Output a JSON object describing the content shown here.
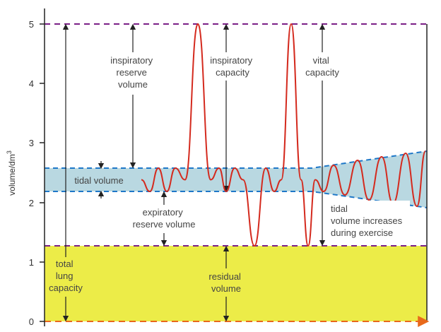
{
  "colors": {
    "residual_fill": "#ecec48",
    "tidal_band_fill": "#b9d8e1",
    "boundary_dash": "#7a1f86",
    "band_edge_dash": "#1f78c8",
    "trace": "#d42a1e",
    "baseline_arrow": "#e8691b",
    "axis": "#222222"
  },
  "axis": {
    "y_label": "volume/dm",
    "y_label_superscript": "3",
    "ticks": [
      "0",
      "1",
      "2",
      "3",
      "4",
      "5"
    ]
  },
  "labels": {
    "inspiratory_reserve": [
      "inspiratory",
      "reserve",
      "volume"
    ],
    "inspiratory_capacity": [
      "inspiratory",
      "capacity"
    ],
    "vital_capacity": [
      "vital",
      "capacity"
    ],
    "tidal_volume": "tidal volume",
    "expiratory_reserve": [
      "expiratory",
      "reserve volume"
    ],
    "tidal_exercise": [
      "tidal",
      "volume increases",
      "during exercise"
    ],
    "total_lung_capacity": [
      "total",
      "lung",
      "capacity"
    ],
    "residual_volume": [
      "residual",
      "volume"
    ]
  }
}
